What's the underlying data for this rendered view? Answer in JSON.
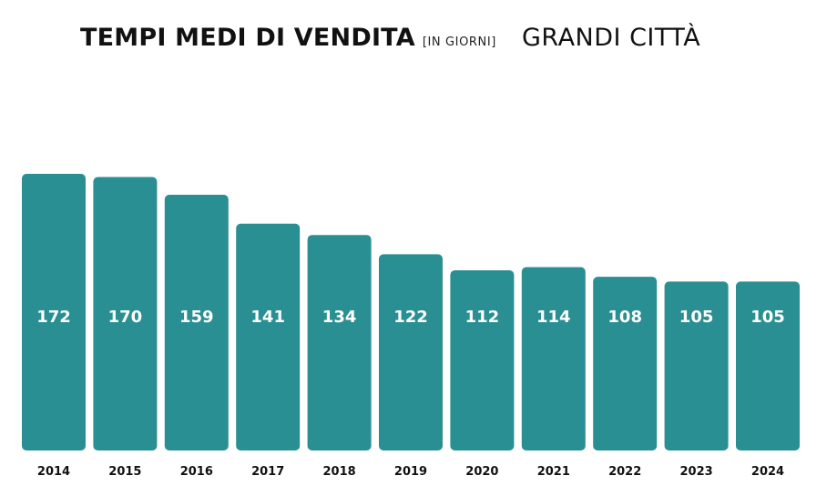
{
  "chart_data": {
    "type": "bar",
    "title": "TEMPI MEDI DI VENDITA",
    "unit_label": "[IN GIORNI]",
    "subtitle": "GRANDI CITTÀ",
    "categories": [
      "2014",
      "2015",
      "2016",
      "2017",
      "2018",
      "2019",
      "2020",
      "2021",
      "2022",
      "2023",
      "2024"
    ],
    "values": [
      172,
      170,
      159,
      141,
      134,
      122,
      112,
      114,
      108,
      105,
      105
    ],
    "ylim": [
      0,
      172
    ],
    "data_labels": "inside-center",
    "grid": false,
    "bar_color": "#2a8f92",
    "label_color": "#ffffff"
  }
}
